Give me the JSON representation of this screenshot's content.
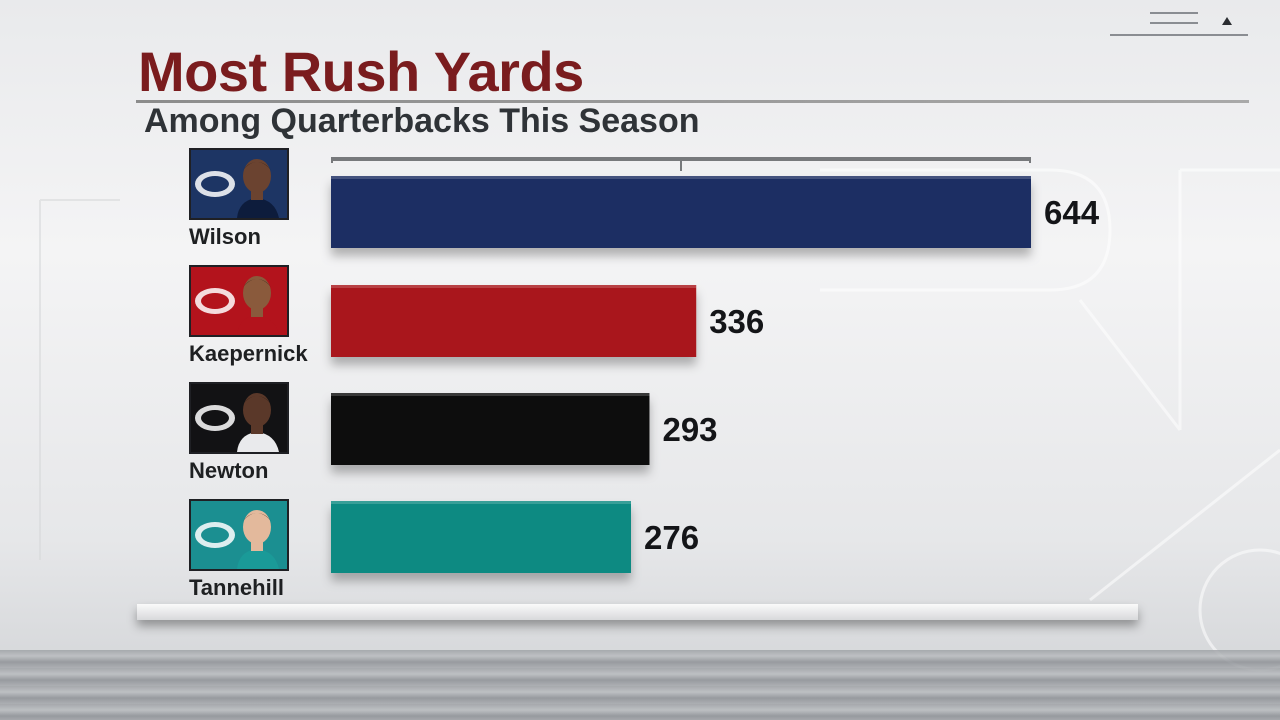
{
  "chart_data": {
    "type": "bar",
    "orientation": "horizontal",
    "title": "Most Rush Yards",
    "subtitle": "Among Quarterbacks This Season",
    "xlim": [
      0,
      644
    ],
    "categories": [
      "Wilson",
      "Kaepernick",
      "Newton",
      "Tannehill"
    ],
    "values": [
      644,
      336,
      293,
      276
    ],
    "data_labels": [
      "644",
      "336",
      "293",
      "276"
    ],
    "bar_colors": [
      "#1b2f63",
      "#a9141f",
      "#0d0d0f",
      "#0f8a82"
    ],
    "grid": false,
    "legend": "none"
  },
  "players": [
    {
      "name": "Wilson",
      "logo": "seahawks-logo-icon",
      "bg": "#1d3564",
      "jersey": "#0d1c3c",
      "skin": "#6b4330"
    },
    {
      "name": "Kaepernick",
      "logo": "49ers-logo-icon",
      "bg": "#b3131c",
      "jersey": "#b3131c",
      "skin": "#8a5a3c"
    },
    {
      "name": "Newton",
      "logo": "panthers-logo-icon",
      "bg": "#121214",
      "jersey": "#e9eaec",
      "skin": "#5a3829"
    },
    {
      "name": "Tannehill",
      "logo": "dolphins-logo-icon",
      "bg": "#1b8f91",
      "jersey": "#1a9a98",
      "skin": "#e3b99c"
    }
  ],
  "colors": {
    "title": "#7a1c1e",
    "subtitle": "#2f3337",
    "axis": "#77797c"
  }
}
